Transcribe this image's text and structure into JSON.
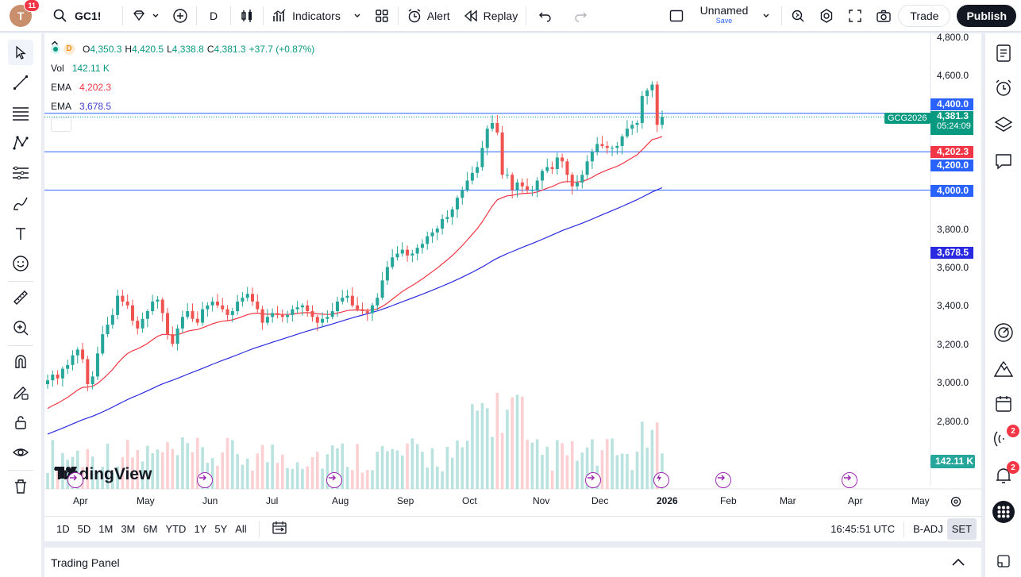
{
  "topbar": {
    "avatar_letter": "T",
    "avatar_badge": "11",
    "symbol": "GC1!",
    "interval": "D",
    "indicators_label": "Indicators",
    "alert_label": "Alert",
    "replay_label": "Replay",
    "layout_name": "Unnamed",
    "layout_save": "Save",
    "trade_label": "Trade",
    "publish_label": "Publish"
  },
  "legend": {
    "interval_badge": "D",
    "open_label": "O",
    "open": "4,350.3",
    "high_label": "H",
    "high": "4,420.5",
    "low_label": "L",
    "low": "4,338.8",
    "close_label": "C",
    "close": "4,381.3",
    "change": "+37.7 (+0.87%)",
    "vol_label": "Vol",
    "vol_value": "142.11 K",
    "ema1_label": "EMA",
    "ema1_value": "4,202.3",
    "ema2_label": "EMA",
    "ema2_value": "3,678.5"
  },
  "price_axis": {
    "ticks": [
      "4,800.0",
      "4,600.0",
      "3,800.0",
      "3,600.0",
      "3,400.0",
      "3,200.0",
      "3,000.0",
      "2,800.0"
    ],
    "labels": {
      "line_4400": "4,400.0",
      "last_price": "4,381.3",
      "countdown": "05:24:09",
      "ema1": "4,202.3",
      "line_4200": "4,200.0",
      "line_4000": "4,000.0",
      "ema2": "3,678.5",
      "volume": "142.11 K"
    },
    "symbol_tag": "GCG2026"
  },
  "time_axis": [
    "Apr",
    "May",
    "Jun",
    "Jul",
    "Aug",
    "Sep",
    "Oct",
    "Nov",
    "Dec",
    "2026",
    "Feb",
    "Mar",
    "Apr",
    "May"
  ],
  "watermark": "TradingView",
  "range_bar": {
    "ranges": [
      "1D",
      "5D",
      "1M",
      "3M",
      "6M",
      "YTD",
      "1Y",
      "5Y",
      "All"
    ],
    "clock": "16:45:51 UTC",
    "adj": "B-ADJ",
    "session": "SET"
  },
  "trading_panel": {
    "label": "Trading Panel"
  },
  "right_badges": {
    "notifications": "2",
    "alerts": "2"
  },
  "colors": {
    "up": "#26a69a",
    "down": "#ef5350",
    "ema_fast": "#f23645",
    "ema_slow": "#2a2ae0",
    "hline": "#2962ff"
  },
  "chart_data": {
    "type": "candlestick",
    "symbol": "GC1!",
    "horizontal_lines": [
      4400,
      4200,
      4000
    ],
    "ylim": [
      2700,
      4850
    ],
    "last_close": 4381.3,
    "closes_approx": [
      3010,
      3040,
      3020,
      3070,
      3090,
      3140,
      3170,
      3120,
      2990,
      3030,
      3150,
      3250,
      3300,
      3350,
      3450,
      3420,
      3400,
      3320,
      3280,
      3330,
      3370,
      3420,
      3430,
      3360,
      3250,
      3200,
      3280,
      3340,
      3370,
      3330,
      3310,
      3380,
      3400,
      3420,
      3400,
      3380,
      3350,
      3370,
      3420,
      3440,
      3460,
      3420,
      3380,
      3310,
      3340,
      3360,
      3350,
      3340,
      3350,
      3380,
      3390,
      3400,
      3370,
      3340,
      3310,
      3330,
      3340,
      3370,
      3420,
      3440,
      3450,
      3400,
      3380,
      3370,
      3360,
      3400,
      3440,
      3530,
      3600,
      3650,
      3670,
      3690,
      3660,
      3670,
      3700,
      3720,
      3760,
      3780,
      3800,
      3850,
      3860,
      3900,
      3960,
      4000,
      4050,
      4090,
      4120,
      4220,
      4320,
      4350,
      4300,
      4080,
      4080,
      4000,
      4040,
      4020,
      4000,
      4000,
      4050,
      4100,
      4120,
      4110,
      4170,
      4150,
      4080,
      4020,
      4040,
      4080,
      4150,
      4200,
      4240,
      4230,
      4220,
      4220,
      4230,
      4280,
      4320,
      4340,
      4350,
      4490,
      4520,
      4550,
      4340,
      4381
    ]
  }
}
